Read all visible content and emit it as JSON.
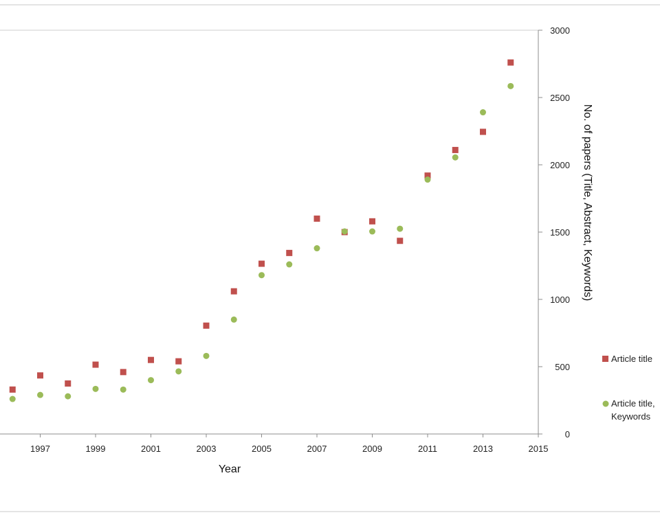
{
  "chart_data": {
    "type": "scatter",
    "xlabel": "Year",
    "ylabel": "No. of papers (Title, Abstract, Keywords)",
    "xlim": [
      1995,
      2015
    ],
    "ylim": [
      0,
      3000
    ],
    "x_ticks": [
      "1997",
      "1999",
      "2001",
      "2003",
      "2005",
      "2007",
      "2009",
      "2011",
      "2013",
      "2015"
    ],
    "y_ticks": [
      "0",
      "500",
      "1000",
      "1500",
      "2000",
      "2500",
      "3000"
    ],
    "grid": false,
    "legend_position": "right",
    "series": [
      {
        "name": "Article title",
        "marker": "square",
        "color": "#c0504d",
        "x": [
          1996,
          1997,
          1998,
          1999,
          2000,
          2001,
          2002,
          2003,
          2004,
          2005,
          2006,
          2007,
          2008,
          2009,
          2010,
          2011,
          2012,
          2013,
          2014
        ],
        "values": [
          330,
          435,
          375,
          515,
          460,
          550,
          540,
          805,
          1060,
          1265,
          1345,
          1600,
          1500,
          1580,
          1435,
          1920,
          2110,
          2245,
          2760
        ]
      },
      {
        "name": "Article title, Keywords",
        "marker": "circle",
        "color": "#9bbb59",
        "x": [
          1996,
          1997,
          1998,
          1999,
          2000,
          2001,
          2002,
          2003,
          2004,
          2005,
          2006,
          2007,
          2008,
          2009,
          2010,
          2011,
          2012,
          2013,
          2014
        ],
        "values": [
          260,
          290,
          280,
          335,
          330,
          400,
          465,
          580,
          850,
          1180,
          1260,
          1380,
          1505,
          1505,
          1525,
          1890,
          2055,
          2390,
          2585
        ]
      }
    ],
    "legend": {
      "item1": "Article title",
      "item2_line1": "Article title,",
      "item2_line2": "Keywords"
    }
  }
}
